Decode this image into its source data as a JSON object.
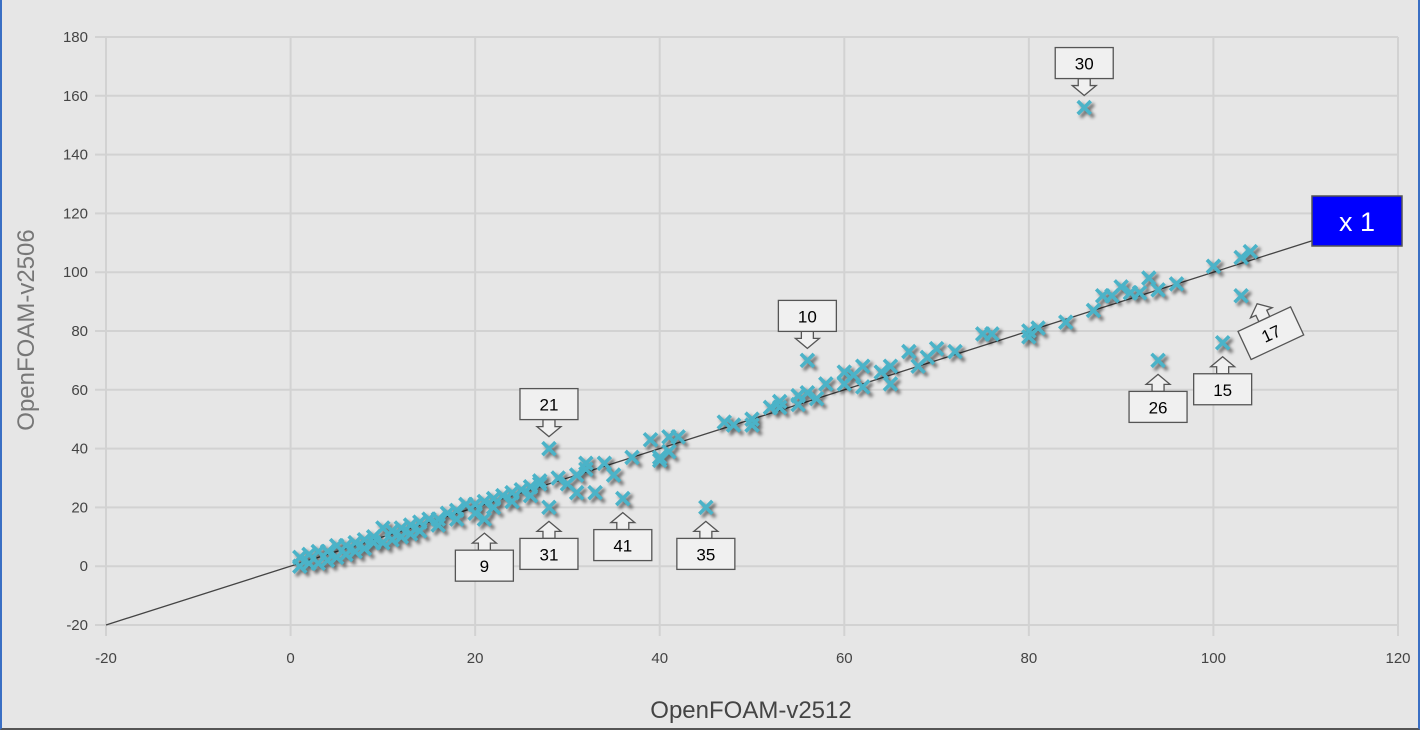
{
  "chart_data": {
    "type": "scatter",
    "title": "",
    "xlabel": "OpenFOAM-v2512",
    "ylabel": "OpenFOAM-v2506",
    "xlim": [
      -20,
      120
    ],
    "ylim": [
      -20,
      180
    ],
    "xticks": [
      -20,
      0,
      20,
      40,
      60,
      80,
      100,
      120
    ],
    "yticks": [
      -20,
      0,
      20,
      40,
      60,
      80,
      100,
      120,
      140,
      160,
      180
    ],
    "grid": true,
    "marker_color": "#4bb3c8",
    "reference_line": {
      "slope": 1,
      "label": "x 1",
      "label_color": "#0000ff",
      "x_range": [
        -20,
        110.7
      ]
    },
    "points": [
      [
        1,
        3
      ],
      [
        2,
        4
      ],
      [
        3,
        5
      ],
      [
        4,
        5
      ],
      [
        5,
        7
      ],
      [
        6,
        7
      ],
      [
        7,
        8
      ],
      [
        8,
        9
      ],
      [
        9,
        10
      ],
      [
        10,
        13
      ],
      [
        11,
        12
      ],
      [
        12,
        13
      ],
      [
        13,
        14
      ],
      [
        14,
        15
      ],
      [
        15,
        16
      ],
      [
        16,
        16
      ],
      [
        17,
        18
      ],
      [
        18,
        19
      ],
      [
        19,
        21
      ],
      [
        20,
        21
      ],
      [
        21,
        22
      ],
      [
        22,
        23
      ],
      [
        23,
        24
      ],
      [
        24,
        25
      ],
      [
        25,
        26
      ],
      [
        26,
        27
      ],
      [
        27,
        28
      ],
      [
        27,
        29
      ],
      [
        1,
        0
      ],
      [
        2,
        1
      ],
      [
        3,
        1
      ],
      [
        4,
        2
      ],
      [
        5,
        3
      ],
      [
        6,
        4
      ],
      [
        7,
        5
      ],
      [
        8,
        6
      ],
      [
        9,
        8
      ],
      [
        10,
        8
      ],
      [
        11,
        9
      ],
      [
        12,
        10
      ],
      [
        13,
        11
      ],
      [
        14,
        12
      ],
      [
        16,
        14
      ],
      [
        18,
        16
      ],
      [
        20,
        18
      ],
      [
        22,
        20
      ],
      [
        24,
        22
      ],
      [
        26,
        24
      ],
      [
        21,
        16
      ],
      [
        28,
        40
      ],
      [
        28,
        20
      ],
      [
        29,
        30
      ],
      [
        30,
        28
      ],
      [
        31,
        25
      ],
      [
        31,
        31
      ],
      [
        32,
        35
      ],
      [
        32,
        33
      ],
      [
        33,
        25
      ],
      [
        34,
        35
      ],
      [
        35,
        31
      ],
      [
        36,
        23
      ],
      [
        37,
        37
      ],
      [
        39,
        43
      ],
      [
        40,
        37
      ],
      [
        40,
        36
      ],
      [
        41,
        44
      ],
      [
        41,
        39
      ],
      [
        42,
        44
      ],
      [
        45,
        20
      ],
      [
        47,
        49
      ],
      [
        48,
        48
      ],
      [
        50,
        48
      ],
      [
        50,
        50
      ],
      [
        52,
        54
      ],
      [
        53,
        56
      ],
      [
        53,
        54
      ],
      [
        55,
        58
      ],
      [
        55,
        55
      ],
      [
        56,
        59
      ],
      [
        56,
        70
      ],
      [
        57,
        57
      ],
      [
        58,
        62
      ],
      [
        60,
        66
      ],
      [
        60,
        62
      ],
      [
        61,
        65
      ],
      [
        62,
        68
      ],
      [
        62,
        61
      ],
      [
        64,
        66
      ],
      [
        65,
        68
      ],
      [
        65,
        62
      ],
      [
        67,
        73
      ],
      [
        68,
        68
      ],
      [
        69,
        71
      ],
      [
        70,
        74
      ],
      [
        72,
        73
      ],
      [
        75,
        79
      ],
      [
        76,
        79
      ],
      [
        80,
        80
      ],
      [
        80,
        78
      ],
      [
        81,
        81
      ],
      [
        84,
        83
      ],
      [
        86,
        156
      ],
      [
        87,
        87
      ],
      [
        88,
        92
      ],
      [
        89,
        92
      ],
      [
        90,
        95
      ],
      [
        91,
        93
      ],
      [
        92,
        93
      ],
      [
        93,
        98
      ],
      [
        94,
        94
      ],
      [
        96,
        96
      ],
      [
        94,
        70
      ],
      [
        100,
        102
      ],
      [
        101,
        76
      ],
      [
        103,
        105
      ],
      [
        103,
        92
      ],
      [
        104,
        107
      ]
    ],
    "annotations": [
      {
        "label": "30",
        "x": 86,
        "y": 156,
        "side": "above"
      },
      {
        "label": "10",
        "x": 56,
        "y": 70,
        "side": "above"
      },
      {
        "label": "21",
        "x": 28,
        "y": 40,
        "side": "above"
      },
      {
        "label": "9",
        "x": 21,
        "y": 16,
        "side": "below"
      },
      {
        "label": "31",
        "x": 28,
        "y": 20,
        "side": "below"
      },
      {
        "label": "41",
        "x": 36,
        "y": 23,
        "side": "below"
      },
      {
        "label": "35",
        "x": 45,
        "y": 20,
        "side": "below"
      },
      {
        "label": "26",
        "x": 94,
        "y": 70,
        "side": "below"
      },
      {
        "label": "15",
        "x": 101,
        "y": 76,
        "side": "below"
      },
      {
        "label": "17",
        "x": 103,
        "y": 92,
        "side": "below-right"
      }
    ]
  }
}
